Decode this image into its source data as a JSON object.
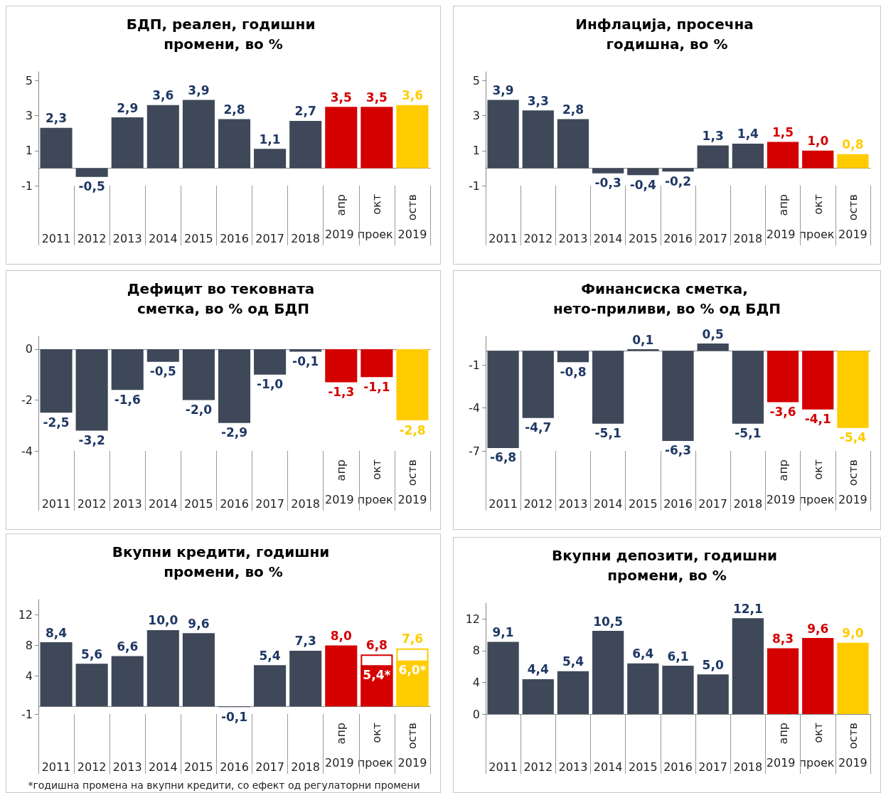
{
  "chart_data": [
    {
      "type": "bar",
      "title": "БДП, реален, годишни промени, во %",
      "categories": [
        "2011",
        "2012",
        "2013",
        "2014",
        "2015",
        "2016",
        "2017",
        "2018",
        "апр",
        "окт",
        "оств"
      ],
      "series": [
        {
          "values": [
            2.3,
            -0.5,
            2.9,
            3.6,
            3.9,
            2.8,
            1.1,
            2.7,
            3.5,
            3.5,
            3.6
          ],
          "colors": [
            "#3e4858",
            "#3e4858",
            "#3e4858",
            "#3e4858",
            "#3e4858",
            "#3e4858",
            "#3e4858",
            "#3e4858",
            "#d40000",
            "#d40000",
            "#ffcc00"
          ],
          "value_labels": [
            "2,3",
            "-0,5",
            "2,9",
            "3,6",
            "3,9",
            "2,8",
            "1,1",
            "2,7",
            "3,5",
            "3,5",
            "3,6"
          ]
        }
      ],
      "ylim": [
        -1,
        5.5
      ],
      "yticks": [
        5,
        3,
        1,
        -1
      ],
      "annotations": [
        "2019 проек",
        "2019"
      ]
    },
    {
      "type": "bar",
      "title": "Инфлација, просечна годишна, во %",
      "categories": [
        "2011",
        "2012",
        "2013",
        "2014",
        "2015",
        "2016",
        "2017",
        "2018",
        "апр",
        "окт",
        "оств"
      ],
      "series": [
        {
          "values": [
            3.9,
            3.3,
            2.8,
            -0.3,
            -0.4,
            -0.2,
            1.3,
            1.4,
            1.5,
            1.0,
            0.8
          ],
          "colors": [
            "#3e4858",
            "#3e4858",
            "#3e4858",
            "#3e4858",
            "#3e4858",
            "#3e4858",
            "#3e4858",
            "#3e4858",
            "#d40000",
            "#d40000",
            "#ffcc00"
          ],
          "value_labels": [
            "3,9",
            "3,3",
            "2,8",
            "-0,3",
            "-0,4",
            "-0,2",
            "1,3",
            "1,4",
            "1,5",
            "1,0",
            "0,8"
          ]
        }
      ],
      "ylim": [
        -1,
        5.5
      ],
      "yticks": [
        5,
        3,
        1,
        -1
      ],
      "annotations": [
        "2019 проек",
        "2019"
      ]
    },
    {
      "type": "bar",
      "title": "Дефицит во тековната сметка, во % од БДП",
      "categories": [
        "2011",
        "2012",
        "2013",
        "2014",
        "2015",
        "2016",
        "2017",
        "2018",
        "апр",
        "окт",
        "оств"
      ],
      "series": [
        {
          "values": [
            -2.5,
            -3.2,
            -1.6,
            -0.5,
            -2.0,
            -2.9,
            -1.0,
            -0.1,
            -1.3,
            -1.1,
            -2.8
          ],
          "colors": [
            "#3e4858",
            "#3e4858",
            "#3e4858",
            "#3e4858",
            "#3e4858",
            "#3e4858",
            "#3e4858",
            "#3e4858",
            "#d40000",
            "#d40000",
            "#ffcc00"
          ],
          "value_labels": [
            "-2,5",
            "-3,2",
            "-1,6",
            "-0,5",
            "-2,0",
            "-2,9",
            "-1,0",
            "-0,1",
            "-1,3",
            "-1,1",
            "-2,8"
          ]
        }
      ],
      "ylim": [
        -4,
        0.5
      ],
      "yticks": [
        0,
        -2,
        -4
      ],
      "annotations": [
        "2019 проек",
        "2019"
      ]
    },
    {
      "type": "bar",
      "title": "Финансиска сметка, нето-приливи, во % од БДП",
      "categories": [
        "2011",
        "2012",
        "2013",
        "2014",
        "2015",
        "2016",
        "2017",
        "2018",
        "апр",
        "окт",
        "оств"
      ],
      "series": [
        {
          "values": [
            -6.8,
            -4.7,
            -0.8,
            -5.1,
            0.1,
            -6.3,
            0.5,
            -5.1,
            -3.6,
            -4.1,
            -5.4
          ],
          "colors": [
            "#3e4858",
            "#3e4858",
            "#3e4858",
            "#3e4858",
            "#3e4858",
            "#3e4858",
            "#3e4858",
            "#3e4858",
            "#d40000",
            "#d40000",
            "#ffcc00"
          ],
          "value_labels": [
            "-6,8",
            "-4,7",
            "-0,8",
            "-5,1",
            "0,1",
            "-6,3",
            "0,5",
            "-5,1",
            "-3,6",
            "-4,1",
            "-5,4"
          ]
        }
      ],
      "ylim": [
        -7,
        1
      ],
      "yticks": [
        -1,
        -4,
        -7
      ],
      "annotations": [
        "2019 проек",
        "2019"
      ]
    },
    {
      "type": "bar",
      "title": "Вкупни кредити, годишни промени, во %",
      "categories": [
        "2011",
        "2012",
        "2013",
        "2014",
        "2015",
        "2016",
        "2017",
        "2018",
        "апр",
        "окт",
        "оств"
      ],
      "series": [
        {
          "values": [
            8.4,
            5.6,
            6.6,
            10.0,
            9.6,
            -0.1,
            5.4,
            7.3,
            8.0,
            6.8,
            7.6
          ],
          "colors": [
            "#3e4858",
            "#3e4858",
            "#3e4858",
            "#3e4858",
            "#3e4858",
            "#3e4858",
            "#3e4858",
            "#3e4858",
            "#d40000",
            "#ffffff",
            "#ffffff"
          ],
          "value_labels": [
            "8,4",
            "5,6",
            "6,6",
            "10,0",
            "9,6",
            "-0,1",
            "5,4",
            "7,3",
            "8,0",
            "6,8",
            "7,6"
          ]
        },
        {
          "values": [
            null,
            null,
            null,
            null,
            null,
            null,
            null,
            null,
            null,
            5.4,
            6.0
          ],
          "colors": [
            null,
            null,
            null,
            null,
            null,
            null,
            null,
            null,
            null,
            "#d40000",
            "#ffcc00"
          ],
          "value_labels": [
            null,
            null,
            null,
            null,
            null,
            null,
            null,
            null,
            null,
            "5,4*",
            "6,0*"
          ]
        }
      ],
      "ylim": [
        -1,
        14
      ],
      "yticks": [
        12,
        8,
        4,
        -1
      ],
      "annotations": [
        "2019 проек",
        "2019",
        "*годишна промена на вкупни кредити, со ефект од регулаторни промени"
      ]
    },
    {
      "type": "bar",
      "title": "Вкупни депозити, годишни промени, во %",
      "categories": [
        "2011",
        "2012",
        "2013",
        "2014",
        "2015",
        "2016",
        "2017",
        "2018",
        "апр",
        "окт",
        "оств"
      ],
      "series": [
        {
          "values": [
            9.1,
            4.4,
            5.4,
            10.5,
            6.4,
            6.1,
            5.0,
            12.1,
            8.3,
            9.6,
            9.0
          ],
          "colors": [
            "#3e4858",
            "#3e4858",
            "#3e4858",
            "#3e4858",
            "#3e4858",
            "#3e4858",
            "#3e4858",
            "#3e4858",
            "#d40000",
            "#d40000",
            "#ffcc00"
          ],
          "value_labels": [
            "9,1",
            "4,4",
            "5,4",
            "10,5",
            "6,4",
            "6,1",
            "5,0",
            "12,1",
            "8,3",
            "9,6",
            "9,0"
          ]
        }
      ],
      "ylim": [
        0,
        14
      ],
      "yticks": [
        12,
        8,
        4,
        0
      ],
      "annotations": [
        "2019 проек",
        "2019"
      ]
    }
  ]
}
